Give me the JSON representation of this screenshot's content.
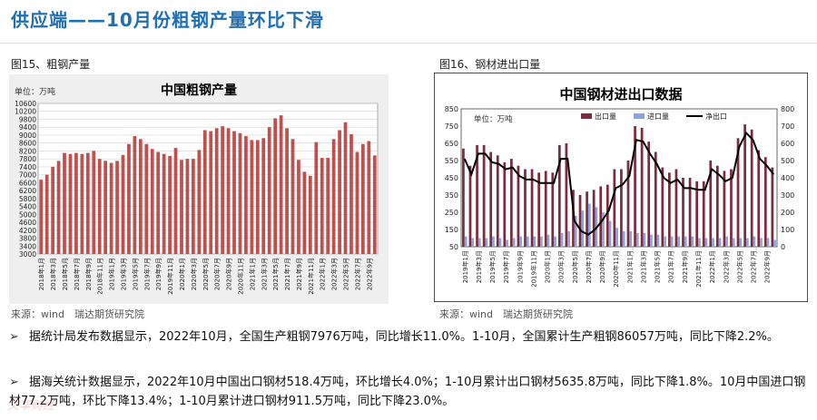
{
  "header": {
    "title": "供应端——10月份粗钢产量环比下滑"
  },
  "chart_data": [
    {
      "type": "bar",
      "figure_label": "图15、粗钢产量",
      "title": "中国粗钢产量",
      "unit": "单位：万吨",
      "ylim": [
        3000,
        10600
      ],
      "yticks": [
        3000,
        3400,
        3800,
        4200,
        4600,
        5000,
        5400,
        5800,
        6200,
        6600,
        7000,
        7400,
        7800,
        8200,
        8600,
        9000,
        9400,
        9800,
        10200,
        10600
      ],
      "months": [
        "2018年1月",
        "2018年2月",
        "2018年3月",
        "2018年4月",
        "2018年5月",
        "2018年6月",
        "2018年7月",
        "2018年8月",
        "2018年9月",
        "2018年10月",
        "2018年11月",
        "2018年12月",
        "2019年1月",
        "2019年2月",
        "2019年3月",
        "2019年4月",
        "2019年5月",
        "2019年6月",
        "2019年7月",
        "2019年8月",
        "2019年9月",
        "2019年10月",
        "2019年11月",
        "2019年12月",
        "2020年1月",
        "2020年2月",
        "2020年3月",
        "2020年4月",
        "2020年5月",
        "2020年6月",
        "2020年7月",
        "2020年8月",
        "2020年9月",
        "2020年10月",
        "2020年11月",
        "2020年12月",
        "2021年1月",
        "2021年2月",
        "2021年3月",
        "2021年4月",
        "2021年5月",
        "2021年6月",
        "2021年7月",
        "2021年8月",
        "2021年9月",
        "2021年10月",
        "2021年11月",
        "2021年12月",
        "2022年1月",
        "2022年2月",
        "2022年3月",
        "2022年4月",
        "2022年5月",
        "2022年6月",
        "2022年7月",
        "2022年8月",
        "2022年9月",
        "2022年10月"
      ],
      "xtick_labels": [
        "2018年1月",
        "2018年3月",
        "2018年5月",
        "2018年7月",
        "2018年9月",
        "2018年11月",
        "2019年1月",
        "2019年3月",
        "2019年5月",
        "2019年7月",
        "2019年9月",
        "2019年11月",
        "2020年1月",
        "2020年3月",
        "2020年5月",
        "2020年7月",
        "2020年9月",
        "2020年11月",
        "2021年1月",
        "2021年3月",
        "2021年5月",
        "2021年7月",
        "2021年9月",
        "2021年11月",
        "2022年1月",
        "2022年3月",
        "2022年5月",
        "2022年7月",
        "2022年9月"
      ],
      "values": [
        6750,
        7000,
        7400,
        7700,
        8100,
        8050,
        8100,
        8050,
        8100,
        8200,
        7800,
        7700,
        7600,
        7700,
        8000,
        8550,
        8950,
        8800,
        8550,
        8300,
        8150,
        8050,
        7950,
        8350,
        7750,
        7800,
        7800,
        8250,
        9250,
        9200,
        9350,
        9450,
        9350,
        9200,
        9100,
        8950,
        8750,
        8750,
        8850,
        9400,
        9850,
        10000,
        9350,
        8800,
        7750,
        7150,
        6950,
        8650,
        7850,
        7850,
        8800,
        9250,
        9650,
        9050,
        8150,
        8550,
        8700,
        7976
      ],
      "source": "来源：wind　瑞达期货研究院"
    },
    {
      "type": "bar+line",
      "figure_label": "图16、钢材进出口量",
      "title": "中国钢材进出口数据",
      "unit": "单位：万吨",
      "left_ylim": [
        50,
        850
      ],
      "left_yticks": [
        50,
        150,
        250,
        350,
        450,
        550,
        650,
        750,
        850
      ],
      "right_ylim": [
        0,
        800
      ],
      "right_yticks": [
        0,
        100,
        200,
        300,
        400,
        500,
        600,
        700,
        800
      ],
      "legend": [
        "出口量",
        "进口量",
        "净出口"
      ],
      "xtick_labels": [
        "2019年1月",
        "2019年3月",
        "2019年5月",
        "2019年7月",
        "2019年9月",
        "2019年11月",
        "2020年1月",
        "2020年3月",
        "2020年5月",
        "2020年7月",
        "2020年9月",
        "2020年11月",
        "2021年1月",
        "2021年3月",
        "2021年5月",
        "2021年7月",
        "2021年9月",
        "2021年11月",
        "2022年1月",
        "2022年3月",
        "2022年5月",
        "2022年7月",
        "2022年9月"
      ],
      "series": [
        {
          "name": "出口量",
          "axis": "left",
          "values": [
            620,
            520,
            640,
            640,
            600,
            580,
            540,
            560,
            520,
            500,
            500,
            480,
            490,
            480,
            640,
            650,
            380,
            350,
            370,
            380,
            400,
            410,
            500,
            500,
            550,
            750,
            740,
            660,
            600,
            510,
            480,
            500,
            450,
            450,
            430,
            430,
            550,
            520,
            490,
            500,
            680,
            760,
            730,
            610,
            570,
            510
          ]
        },
        {
          "name": "进口量",
          "axis": "left",
          "values": [
            110,
            100,
            100,
            100,
            110,
            100,
            90,
            100,
            110,
            110,
            110,
            110,
            120,
            110,
            130,
            140,
            230,
            260,
            300,
            280,
            250,
            200,
            160,
            140,
            140,
            130,
            130,
            120,
            120,
            110,
            110,
            110,
            110,
            110,
            100,
            100,
            100,
            100,
            110,
            100,
            100,
            100,
            110,
            100,
            100,
            90
          ]
        },
        {
          "name": "净出口",
          "axis": "right",
          "values": [
            510,
            420,
            540,
            540,
            490,
            480,
            450,
            460,
            410,
            390,
            390,
            370,
            370,
            370,
            510,
            510,
            150,
            90,
            70,
            100,
            150,
            210,
            340,
            360,
            410,
            620,
            610,
            540,
            480,
            400,
            370,
            390,
            340,
            340,
            330,
            330,
            450,
            420,
            380,
            400,
            580,
            660,
            620,
            510,
            470,
            420
          ]
        }
      ],
      "source": "来源：wind　瑞达期货研究院"
    }
  ],
  "bullets": [
    "据统计局发布数据显示，2022年10月，全国生产粗钢7976万吨，同比增长11.0%。1-10月，全国累计生产粗钢86057万吨，同比下降2.2%。",
    "据海关统计数据显示，2022年10月中国出口钢材518.4万吨，环比增长4.0%；1-10月累计出口钢材5635.8万吨，同比下降1.8%。10月中国进口钢材77.2万吨，环比下降13.4%；1-10月累计进口钢材911.5万吨，同比下降23.0%。"
  ],
  "bullet_mark": "➢",
  "watermark": "文华财经"
}
